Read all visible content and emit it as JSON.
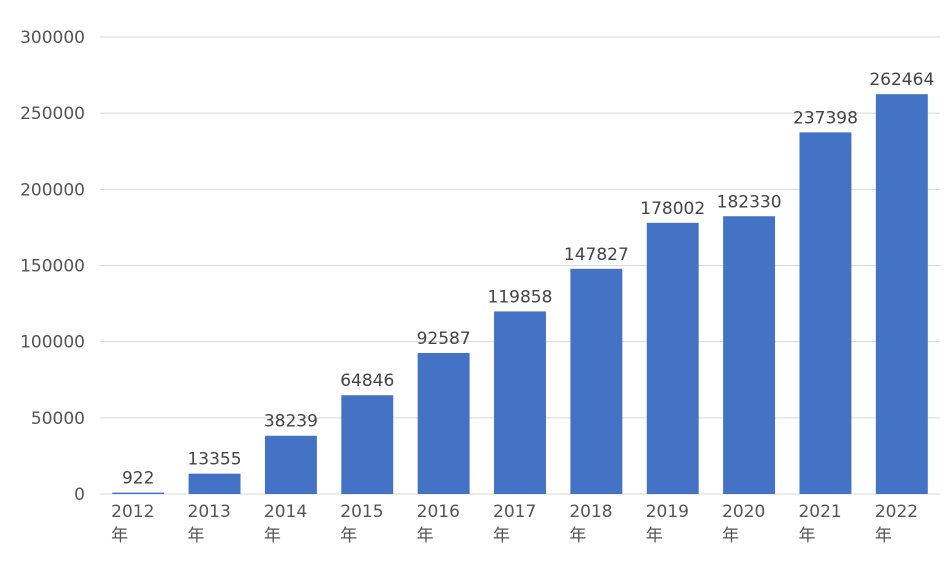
{
  "chart_data": {
    "type": "bar",
    "categories": [
      "2012年",
      "2013年",
      "2014年",
      "2015年",
      "2016年",
      "2017年",
      "2018年",
      "2019年",
      "2020年",
      "2021年",
      "2022年"
    ],
    "values": [
      922,
      13355,
      38239,
      64846,
      92587,
      119858,
      147827,
      178002,
      182330,
      237398,
      262464
    ],
    "color": "#4472c4",
    "ylim": [
      0,
      300000
    ],
    "yticks": [
      0,
      50000,
      100000,
      150000,
      200000,
      250000,
      300000
    ],
    "grid": true
  }
}
